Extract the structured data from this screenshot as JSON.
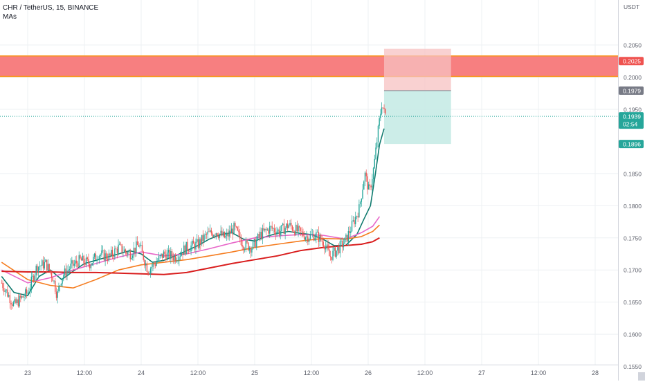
{
  "legend": {
    "symbol": "CHR / TetherUS, 15, BINANCE",
    "indicator": "MAs"
  },
  "price_axis": {
    "unit": "USDT"
  },
  "colors": {
    "up": "#26a69a",
    "down": "#ef5350",
    "ma_fast": "#0f7a6e",
    "ma_mid": "#e766c9",
    "ma_slow": "#f57c1f",
    "ma_long": "#d91e1e",
    "zone": "#f77f80",
    "zone_edge": "#f7931a",
    "stop": "#f7c1c1",
    "target": "#c6ebe5",
    "grid": "#eef0f3",
    "axis_text": "#5d606b"
  },
  "chart_data": {
    "type": "line",
    "title": "CHR / TetherUS, 15, BINANCE",
    "xlabel": "",
    "ylabel": "USDT",
    "ylim": [
      0.1528,
      0.212
    ],
    "xlim": [
      0,
      5.2
    ],
    "y_ticks": [
      0.205,
      0.2,
      0.195,
      0.185,
      0.18,
      0.175,
      0.17,
      0.165,
      0.16,
      0.155
    ],
    "y_tick_labels": [
      "0.2050",
      "0.2000",
      "0.1950",
      "0.1850",
      "0.1800",
      "0.1750",
      "0.1700",
      "0.1650",
      "0.1600",
      "0.1550"
    ],
    "x_ticks": [
      {
        "x": 0.0,
        "label": "23"
      },
      {
        "x": 0.5,
        "label": "12:00"
      },
      {
        "x": 1.0,
        "label": "24"
      },
      {
        "x": 1.5,
        "label": "12:00"
      },
      {
        "x": 2.0,
        "label": "25"
      },
      {
        "x": 2.5,
        "label": "12:00"
      },
      {
        "x": 3.0,
        "label": "26"
      },
      {
        "x": 3.5,
        "label": "12:00"
      },
      {
        "x": 4.0,
        "label": "27"
      },
      {
        "x": 4.5,
        "label": "12:00"
      },
      {
        "x": 5.0,
        "label": "28"
      }
    ],
    "series": [
      {
        "key": "price",
        "color_key": "up",
        "x": [
          -0.23,
          -0.12,
          0.0,
          0.08,
          0.16,
          0.22,
          0.26,
          0.3,
          0.38,
          0.46,
          0.55,
          0.62,
          0.72,
          0.8,
          0.9,
          0.98,
          1.06,
          1.12,
          1.2,
          1.3,
          1.4,
          1.5,
          1.58,
          1.66,
          1.74,
          1.82,
          1.9,
          1.98,
          2.05,
          2.14,
          2.22,
          2.3,
          2.38,
          2.46,
          2.54,
          2.62,
          2.66,
          2.72,
          2.8,
          2.86,
          2.92,
          2.97,
          3.01,
          3.05,
          3.09,
          3.12,
          3.14,
          3.16
        ],
        "y": [
          0.168,
          0.1645,
          0.1665,
          0.1705,
          0.171,
          0.169,
          0.166,
          0.169,
          0.1705,
          0.1715,
          0.171,
          0.1725,
          0.172,
          0.1735,
          0.1725,
          0.174,
          0.17,
          0.171,
          0.1725,
          0.172,
          0.1735,
          0.174,
          0.1755,
          0.176,
          0.175,
          0.1765,
          0.174,
          0.1735,
          0.1755,
          0.1765,
          0.176,
          0.177,
          0.176,
          0.1752,
          0.1755,
          0.174,
          0.172,
          0.173,
          0.1745,
          0.177,
          0.1795,
          0.185,
          0.182,
          0.186,
          0.192,
          0.196,
          0.1945,
          0.1939
        ]
      },
      {
        "key": "ma_fast",
        "color_key": "ma_fast",
        "x": [
          -0.23,
          -0.12,
          0.0,
          0.1,
          0.2,
          0.3,
          0.4,
          0.5,
          0.6,
          0.7,
          0.8,
          0.9,
          1.0,
          1.1,
          1.2,
          1.3,
          1.4,
          1.5,
          1.6,
          1.7,
          1.8,
          1.9,
          2.0,
          2.1,
          2.2,
          2.3,
          2.4,
          2.5,
          2.6,
          2.7,
          2.8,
          2.9,
          2.96,
          3.02,
          3.06,
          3.1,
          3.14
        ],
        "y": [
          0.169,
          0.1665,
          0.166,
          0.169,
          0.17,
          0.1685,
          0.1698,
          0.171,
          0.1715,
          0.172,
          0.1725,
          0.173,
          0.1725,
          0.1712,
          0.1715,
          0.1722,
          0.173,
          0.1738,
          0.1748,
          0.1755,
          0.1758,
          0.1748,
          0.1745,
          0.1752,
          0.1757,
          0.176,
          0.1757,
          0.1755,
          0.1748,
          0.1738,
          0.1738,
          0.1755,
          0.1778,
          0.18,
          0.1845,
          0.1895,
          0.192
        ]
      },
      {
        "key": "ma_mid",
        "color_key": "ma_mid",
        "x": [
          -0.23,
          0.0,
          0.2,
          0.4,
          0.6,
          0.8,
          1.0,
          1.2,
          1.4,
          1.6,
          1.8,
          2.0,
          2.2,
          2.4,
          2.6,
          2.8,
          2.94,
          3.04,
          3.1
        ],
        "y": [
          0.17,
          0.168,
          0.1688,
          0.17,
          0.171,
          0.172,
          0.1728,
          0.1722,
          0.1725,
          0.1733,
          0.1742,
          0.175,
          0.1753,
          0.1755,
          0.1754,
          0.1748,
          0.1758,
          0.1768,
          0.1783
        ]
      },
      {
        "key": "ma_slow",
        "color_key": "ma_slow",
        "x": [
          -0.23,
          0.0,
          0.2,
          0.4,
          0.6,
          0.8,
          1.0,
          1.2,
          1.4,
          1.6,
          1.8,
          2.0,
          2.2,
          2.4,
          2.6,
          2.8,
          2.94,
          3.04,
          3.1
        ],
        "y": [
          0.1712,
          0.1685,
          0.1676,
          0.1672,
          0.1685,
          0.17,
          0.1708,
          0.1712,
          0.1716,
          0.1722,
          0.1728,
          0.1735,
          0.174,
          0.1745,
          0.1749,
          0.1748,
          0.1752,
          0.176,
          0.177
        ]
      },
      {
        "key": "ma_long",
        "color_key": "ma_long",
        "x": [
          -0.23,
          0.0,
          0.2,
          0.4,
          0.6,
          0.8,
          1.0,
          1.2,
          1.4,
          1.6,
          1.8,
          2.0,
          2.2,
          2.4,
          2.6,
          2.8,
          2.94,
          3.04,
          3.1
        ],
        "y": [
          0.1698,
          0.1697,
          0.1697,
          0.1696,
          0.1696,
          0.1695,
          0.1694,
          0.1693,
          0.1696,
          0.1703,
          0.171,
          0.1716,
          0.1722,
          0.173,
          0.1735,
          0.1738,
          0.174,
          0.1744,
          0.175
        ]
      }
    ],
    "resistance_zone": {
      "y_low": 0.2001,
      "y_high": 0.2033
    },
    "position": {
      "x_start": 3.14,
      "x_end": 3.73,
      "stop_top": 0.2044,
      "entry": 0.1979,
      "target": 0.1896
    },
    "price_labels": [
      {
        "text": "0.2025",
        "y": 0.2025,
        "color_key": "down"
      },
      {
        "text": "0.1979",
        "y": 0.1979,
        "color": "#787b86"
      },
      {
        "text": "0.1939",
        "sub": "02:54",
        "y": 0.1939,
        "color_key": "up"
      },
      {
        "text": "0.1896",
        "y": 0.1896,
        "color_key": "up"
      }
    ]
  }
}
